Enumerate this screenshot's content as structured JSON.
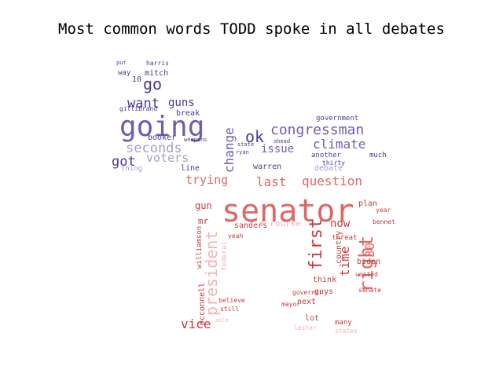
{
  "title": "Most common words TODD spoke in all debates",
  "colors": {
    "blue_dark": "#473d8f",
    "blue_mid": "#6a5fb0",
    "blue_light": "#a49fcf",
    "red_dark": "#c43a3a",
    "red_mid": "#e06666",
    "red_light": "#f2b4b4"
  },
  "words": [
    {
      "text": "going",
      "group": "blue"
    },
    {
      "text": "want",
      "group": "blue"
    },
    {
      "text": "guns",
      "group": "blue"
    },
    {
      "text": "go",
      "group": "blue"
    },
    {
      "text": "mitch",
      "group": "blue"
    },
    {
      "text": "harris",
      "group": "blue"
    },
    {
      "text": "way",
      "group": "blue"
    },
    {
      "text": "put",
      "group": "blue"
    },
    {
      "text": "10",
      "group": "blue"
    },
    {
      "text": "gillibrand",
      "group": "blue"
    },
    {
      "text": "break",
      "group": "blue"
    },
    {
      "text": "seconds",
      "group": "blue"
    },
    {
      "text": "booker",
      "group": "blue"
    },
    {
      "text": "got",
      "group": "blue"
    },
    {
      "text": "voters",
      "group": "blue"
    },
    {
      "text": "thing",
      "group": "blue"
    },
    {
      "text": "change",
      "group": "blue"
    },
    {
      "text": "ok",
      "group": "blue"
    },
    {
      "text": "congressman",
      "group": "blue"
    },
    {
      "text": "climate",
      "group": "blue"
    },
    {
      "text": "issue",
      "group": "blue"
    },
    {
      "text": "government",
      "group": "blue"
    },
    {
      "text": "another",
      "group": "blue"
    },
    {
      "text": "much",
      "group": "blue"
    },
    {
      "text": "line",
      "group": "blue"
    },
    {
      "text": "warren",
      "group": "blue"
    },
    {
      "text": "state",
      "group": "blue"
    },
    {
      "text": "ryan",
      "group": "blue"
    },
    {
      "text": "weapons",
      "group": "blue"
    },
    {
      "text": "debate",
      "group": "blue"
    },
    {
      "text": "ahead",
      "group": "blue"
    },
    {
      "text": "thirty",
      "group": "blue"
    },
    {
      "text": "senator",
      "group": "red"
    },
    {
      "text": "trying",
      "group": "red"
    },
    {
      "text": "last",
      "group": "red"
    },
    {
      "text": "question",
      "group": "red"
    },
    {
      "text": "gun",
      "group": "red"
    },
    {
      "text": "mr",
      "group": "red"
    },
    {
      "text": "now",
      "group": "red"
    },
    {
      "text": "plan",
      "group": "red"
    },
    {
      "text": "first",
      "group": "red"
    },
    {
      "text": "president",
      "group": "red"
    },
    {
      "text": "right",
      "group": "red"
    },
    {
      "text": "30",
      "group": "red"
    },
    {
      "text": "time",
      "group": "red"
    },
    {
      "text": "country",
      "group": "red"
    },
    {
      "text": "biden",
      "group": "red"
    },
    {
      "text": "vice",
      "group": "red"
    },
    {
      "text": "sanders",
      "group": "red"
    },
    {
      "text": "o'rourke",
      "group": "red"
    },
    {
      "text": "williamson",
      "group": "red"
    },
    {
      "text": "mcconnell",
      "group": "red"
    },
    {
      "text": "think",
      "group": "red"
    },
    {
      "text": "guys",
      "group": "red"
    },
    {
      "text": "next",
      "group": "red"
    },
    {
      "text": "lot",
      "group": "red"
    },
    {
      "text": "many",
      "group": "red"
    },
    {
      "text": "senate",
      "group": "red"
    },
    {
      "text": "bennet",
      "group": "red"
    },
    {
      "text": "governor",
      "group": "red"
    },
    {
      "text": "united",
      "group": "red"
    },
    {
      "text": "threat",
      "group": "red"
    },
    {
      "text": "believe",
      "group": "red"
    },
    {
      "text": "still",
      "group": "red"
    },
    {
      "text": "federal",
      "group": "red"
    },
    {
      "text": "yeah",
      "group": "red"
    },
    {
      "text": "year",
      "group": "red"
    },
    {
      "text": "mayor",
      "group": "red"
    },
    {
      "text": "lester",
      "group": "red"
    },
    {
      "text": "able",
      "group": "red"
    },
    {
      "text": "states",
      "group": "red"
    }
  ]
}
